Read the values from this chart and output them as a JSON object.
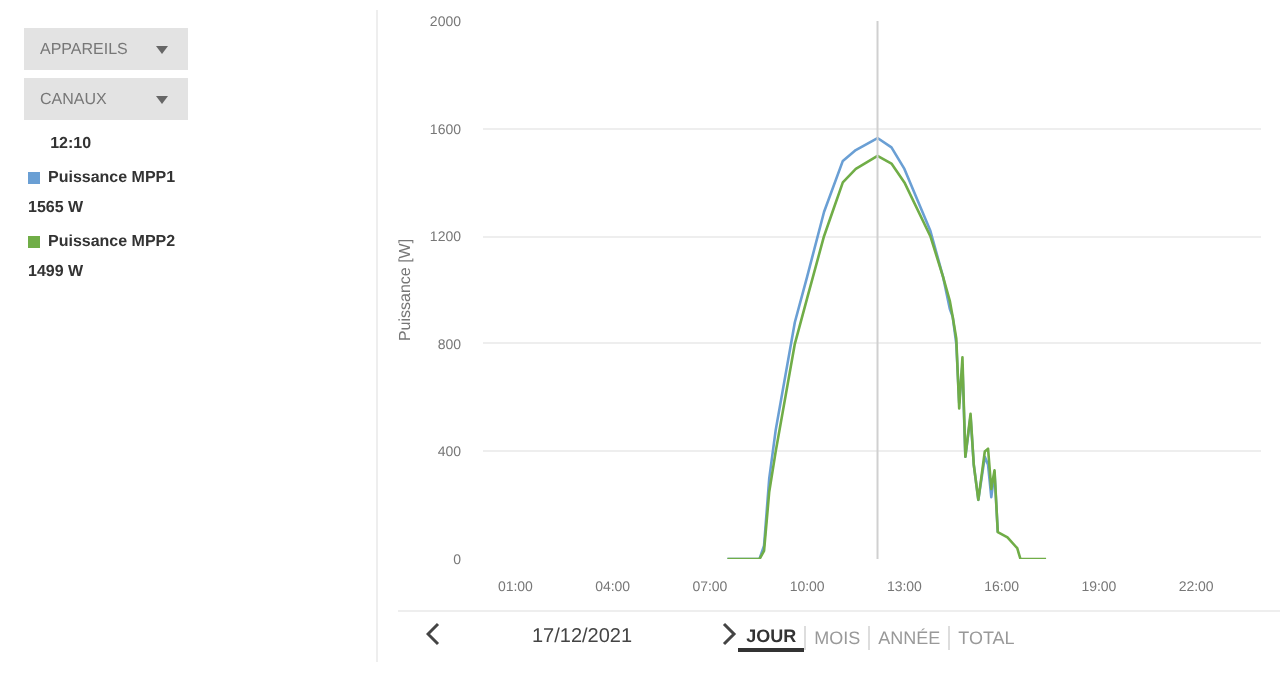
{
  "chart_data": {
    "type": "line",
    "ylabel": "Puissance [W]",
    "xlim": [
      0,
      24
    ],
    "ylim": [
      0,
      2000
    ],
    "xticks": [
      {
        "value": 1,
        "label": "01:00"
      },
      {
        "value": 4,
        "label": "04:00"
      },
      {
        "value": 7,
        "label": "07:00"
      },
      {
        "value": 10,
        "label": "10:00"
      },
      {
        "value": 13,
        "label": "13:00"
      },
      {
        "value": 16,
        "label": "16:00"
      },
      {
        "value": 19,
        "label": "19:00"
      },
      {
        "value": 22,
        "label": "22:00"
      }
    ],
    "yticks": [
      0,
      400,
      800,
      1200,
      1600,
      2000
    ],
    "grid": "y",
    "legend": "left",
    "ref_lines": [
      {
        "axis": "x",
        "value": 12.17,
        "label": null,
        "color": "#d0d0d0"
      }
    ],
    "series": [
      {
        "name": "Puissance MPP1",
        "color": "#6a9fd4",
        "x": [
          7.54,
          8.53,
          8.67,
          8.83,
          9.03,
          9.62,
          10.0,
          10.52,
          11.1,
          11.5,
          12.17,
          12.6,
          13.0,
          13.8,
          14.19,
          14.4,
          14.49,
          14.6,
          14.69,
          14.79,
          14.88,
          15.04,
          15.14,
          15.28,
          15.48,
          15.58,
          15.68,
          15.78,
          15.88
        ],
        "values": [
          0,
          0,
          50,
          300,
          480,
          880,
          1050,
          1290,
          1480,
          1520,
          1565,
          1530,
          1450,
          1220,
          1050,
          930,
          900,
          800,
          580,
          720,
          380,
          530,
          350,
          220,
          380,
          350,
          230,
          320,
          100
        ]
      },
      {
        "name": "Puissance MPP2",
        "color": "#70ad47",
        "x": [
          7.54,
          8.53,
          8.67,
          8.83,
          9.03,
          9.62,
          10.0,
          10.52,
          10.81,
          11.1,
          11.5,
          12.17,
          12.6,
          13.0,
          13.8,
          14.19,
          14.4,
          14.49,
          14.6,
          14.69,
          14.79,
          14.88,
          15.04,
          15.14,
          15.28,
          15.48,
          15.58,
          15.68,
          15.78,
          15.88,
          16.18,
          16.48,
          16.58,
          17.37
        ],
        "values": [
          0,
          0,
          30,
          250,
          400,
          800,
          970,
          1200,
          1300,
          1400,
          1450,
          1499,
          1470,
          1400,
          1200,
          1050,
          960,
          900,
          820,
          560,
          750,
          380,
          540,
          350,
          220,
          400,
          410,
          260,
          330,
          100,
          80,
          40,
          0,
          0
        ]
      }
    ],
    "annotations": [
      "APPAREILS",
      "CANAUX",
      "12:10",
      "1565 W",
      "1499 W",
      "17/12/2021",
      "JOUR",
      "MOIS",
      "ANNÉE",
      "TOTAL"
    ]
  }
}
